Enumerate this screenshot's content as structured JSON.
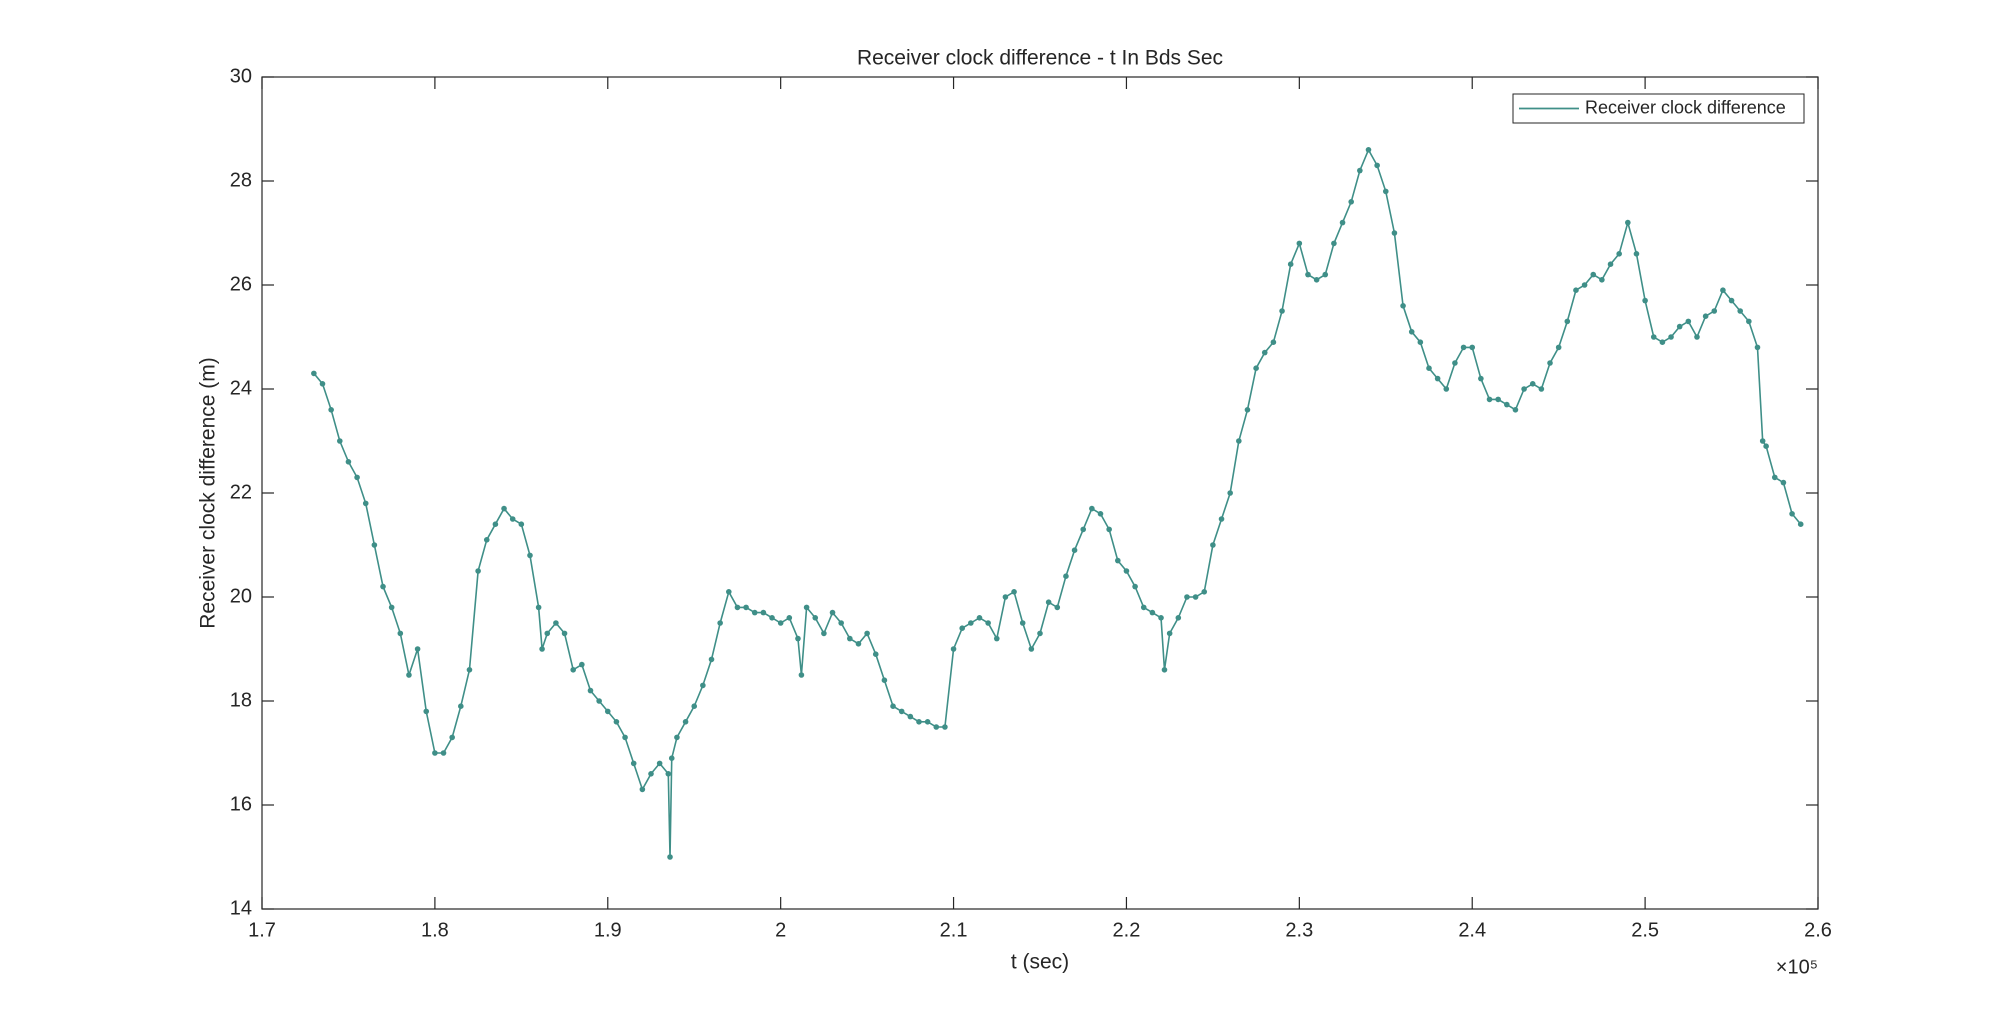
{
  "chart_data": {
    "type": "line",
    "title": "Receiver clock difference - t In Bds Sec",
    "xlabel": "t (sec)",
    "ylabel": "Receiver clock difference (m)",
    "x_multiplier": "×10⁵",
    "legend": "top-right",
    "grid": false,
    "xlim": [
      1.7,
      2.6
    ],
    "xticks": [
      1.7,
      1.8,
      1.9,
      2,
      2.1,
      2.2,
      2.3,
      2.4,
      2.5,
      2.6
    ],
    "ylim": [
      14,
      30
    ],
    "yticks": [
      14,
      16,
      18,
      20,
      22,
      24,
      26,
      28,
      30
    ],
    "x": [
      1.73,
      1.735,
      1.74,
      1.745,
      1.75,
      1.755,
      1.76,
      1.765,
      1.77,
      1.775,
      1.78,
      1.785,
      1.79,
      1.795,
      1.8,
      1.805,
      1.81,
      1.815,
      1.82,
      1.825,
      1.83,
      1.835,
      1.84,
      1.845,
      1.85,
      1.855,
      1.86,
      1.862,
      1.865,
      1.87,
      1.875,
      1.88,
      1.885,
      1.89,
      1.895,
      1.9,
      1.905,
      1.91,
      1.915,
      1.92,
      1.925,
      1.93,
      1.935,
      1.936,
      1.937,
      1.94,
      1.945,
      1.95,
      1.955,
      1.96,
      1.965,
      1.97,
      1.975,
      1.98,
      1.985,
      1.99,
      1.995,
      2.0,
      2.005,
      2.01,
      2.012,
      2.015,
      2.02,
      2.025,
      2.03,
      2.035,
      2.04,
      2.045,
      2.05,
      2.055,
      2.06,
      2.065,
      2.07,
      2.075,
      2.08,
      2.085,
      2.09,
      2.095,
      2.1,
      2.105,
      2.11,
      2.115,
      2.12,
      2.125,
      2.13,
      2.135,
      2.14,
      2.145,
      2.15,
      2.155,
      2.16,
      2.165,
      2.17,
      2.175,
      2.18,
      2.185,
      2.19,
      2.195,
      2.2,
      2.205,
      2.21,
      2.215,
      2.22,
      2.222,
      2.225,
      2.23,
      2.235,
      2.24,
      2.245,
      2.25,
      2.255,
      2.26,
      2.265,
      2.27,
      2.275,
      2.28,
      2.285,
      2.29,
      2.295,
      2.3,
      2.305,
      2.31,
      2.315,
      2.32,
      2.325,
      2.33,
      2.335,
      2.34,
      2.345,
      2.35,
      2.355,
      2.36,
      2.365,
      2.37,
      2.375,
      2.38,
      2.385,
      2.39,
      2.395,
      2.4,
      2.405,
      2.41,
      2.415,
      2.42,
      2.425,
      2.43,
      2.435,
      2.44,
      2.445,
      2.45,
      2.455,
      2.46,
      2.465,
      2.47,
      2.475,
      2.48,
      2.485,
      2.49,
      2.495,
      2.5,
      2.505,
      2.51,
      2.515,
      2.52,
      2.525,
      2.53,
      2.535,
      2.54,
      2.545,
      2.55,
      2.555,
      2.56,
      2.565,
      2.568,
      2.57,
      2.575,
      2.58,
      2.585,
      2.59
    ],
    "series": [
      {
        "name": "Receiver clock difference",
        "color": "#3f8f88",
        "values": [
          24.3,
          24.1,
          23.6,
          23.0,
          22.6,
          22.3,
          21.8,
          21.0,
          20.2,
          19.8,
          19.3,
          18.5,
          19.0,
          17.8,
          17.0,
          17.0,
          17.3,
          17.9,
          18.6,
          20.5,
          21.1,
          21.4,
          21.7,
          21.5,
          21.4,
          20.8,
          19.8,
          19.0,
          19.3,
          19.5,
          19.3,
          18.6,
          18.7,
          18.2,
          18.0,
          17.8,
          17.6,
          17.3,
          16.8,
          16.3,
          16.6,
          16.8,
          16.6,
          15.0,
          16.9,
          17.3,
          17.6,
          17.9,
          18.3,
          18.8,
          19.5,
          20.1,
          19.8,
          19.8,
          19.7,
          19.7,
          19.6,
          19.5,
          19.6,
          19.2,
          18.5,
          19.8,
          19.6,
          19.3,
          19.7,
          19.5,
          19.2,
          19.1,
          19.3,
          18.9,
          18.4,
          17.9,
          17.8,
          17.7,
          17.6,
          17.6,
          17.5,
          17.5,
          19.0,
          19.4,
          19.5,
          19.6,
          19.5,
          19.2,
          20.0,
          20.1,
          19.5,
          19.0,
          19.3,
          19.9,
          19.8,
          20.4,
          20.9,
          21.3,
          21.7,
          21.6,
          21.3,
          20.7,
          20.5,
          20.2,
          19.8,
          19.7,
          19.6,
          18.6,
          19.3,
          19.6,
          20.0,
          20.0,
          20.1,
          21.0,
          21.5,
          22.0,
          23.0,
          23.6,
          24.4,
          24.7,
          24.9,
          25.5,
          26.4,
          26.8,
          26.2,
          26.1,
          26.2,
          26.8,
          27.2,
          27.6,
          28.2,
          28.6,
          28.3,
          27.8,
          27.0,
          25.6,
          25.1,
          24.9,
          24.4,
          24.2,
          24.0,
          24.5,
          24.8,
          24.8,
          24.2,
          23.8,
          23.8,
          23.7,
          23.6,
          24.0,
          24.1,
          24.0,
          24.5,
          24.8,
          25.3,
          25.9,
          26.0,
          26.2,
          26.1,
          26.4,
          26.6,
          27.2,
          26.6,
          25.7,
          25.0,
          24.9,
          25.0,
          25.2,
          25.3,
          25.0,
          25.4,
          25.5,
          25.9,
          25.7,
          25.5,
          25.3,
          24.8,
          23.0,
          22.9,
          22.3,
          22.2,
          21.6,
          21.4
        ]
      }
    ]
  }
}
